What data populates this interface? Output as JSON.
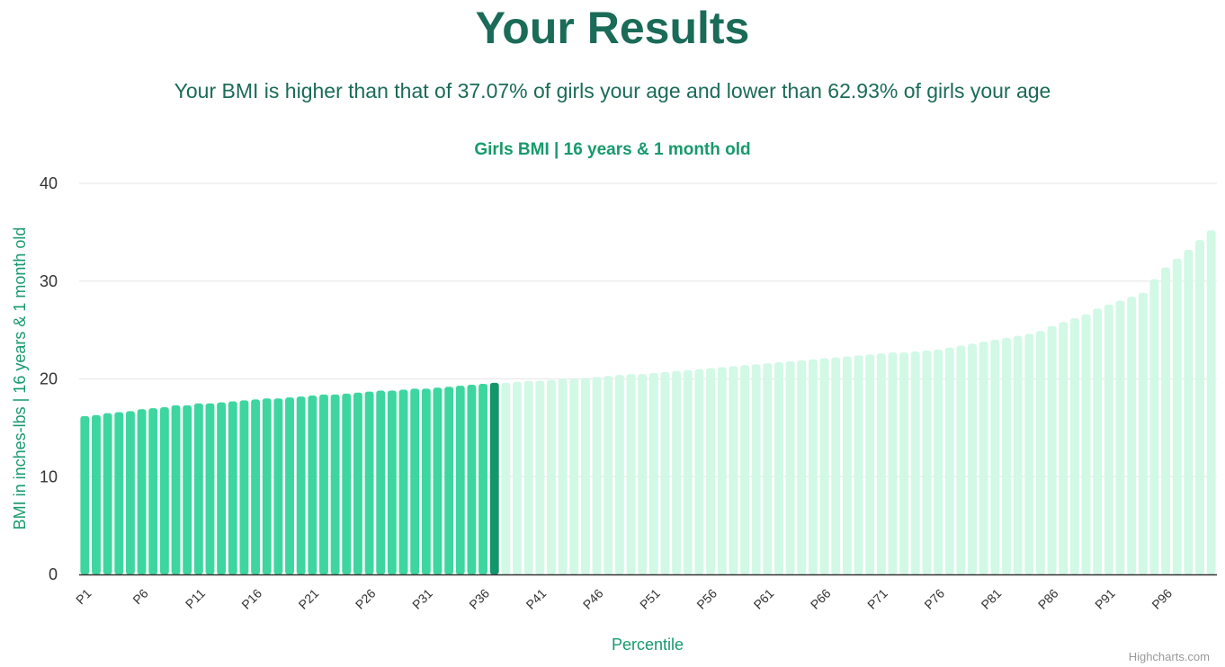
{
  "header": {
    "title": "Your Results",
    "result_text": "Your BMI is higher than that of 37.07% of girls your age and lower than 62.93% of girls your age"
  },
  "credits": "Highcharts.com",
  "colors": {
    "below": "#3dd6a0",
    "current": "#12966a",
    "above": "#d2f8e6",
    "grid": "#e6e6e6",
    "axis": "#333333"
  },
  "chart_data": {
    "type": "bar",
    "title": "Girls BMI | 16 years & 1 month old",
    "xlabel": "Percentile",
    "ylabel": "BMI in inches-lbs | 16 years & 1 month old",
    "ylim": [
      0,
      40
    ],
    "yticks": [
      0,
      10,
      20,
      30,
      40
    ],
    "grid": true,
    "highlight_index": 36,
    "categories": [
      "P1",
      "P2",
      "P3",
      "P4",
      "P5",
      "P6",
      "P7",
      "P8",
      "P9",
      "P10",
      "P11",
      "P12",
      "P13",
      "P14",
      "P15",
      "P16",
      "P17",
      "P18",
      "P19",
      "P20",
      "P21",
      "P22",
      "P23",
      "P24",
      "P25",
      "P26",
      "P27",
      "P28",
      "P29",
      "P30",
      "P31",
      "P32",
      "P33",
      "P34",
      "P35",
      "P36",
      "P37",
      "P38",
      "P39",
      "P40",
      "P41",
      "P42",
      "P43",
      "P44",
      "P45",
      "P46",
      "P47",
      "P48",
      "P49",
      "P50",
      "P51",
      "P52",
      "P53",
      "P54",
      "P55",
      "P56",
      "P57",
      "P58",
      "P59",
      "P60",
      "P61",
      "P62",
      "P63",
      "P64",
      "P65",
      "P66",
      "P67",
      "P68",
      "P69",
      "P70",
      "P71",
      "P72",
      "P73",
      "P74",
      "P75",
      "P76",
      "P77",
      "P78",
      "P79",
      "P80",
      "P81",
      "P82",
      "P83",
      "P84",
      "P85",
      "P86",
      "P87",
      "P88",
      "P89",
      "P90",
      "P91",
      "P92",
      "P93",
      "P94",
      "P95",
      "P96",
      "P97",
      "P98",
      "P99",
      "P100"
    ],
    "x_tick_labels": [
      "P1",
      "P6",
      "P11",
      "P16",
      "P21",
      "P26",
      "P31",
      "P36",
      "P41",
      "P46",
      "P51",
      "P56",
      "P61",
      "P66",
      "P71",
      "P76",
      "P81",
      "P86",
      "P91",
      "P96"
    ],
    "values": [
      16.2,
      16.3,
      16.5,
      16.6,
      16.7,
      16.9,
      17.0,
      17.1,
      17.3,
      17.3,
      17.5,
      17.5,
      17.6,
      17.7,
      17.8,
      17.9,
      18.0,
      18.0,
      18.1,
      18.2,
      18.3,
      18.4,
      18.4,
      18.5,
      18.6,
      18.7,
      18.8,
      18.8,
      18.9,
      19.0,
      19.0,
      19.1,
      19.2,
      19.3,
      19.4,
      19.5,
      19.6,
      19.6,
      19.7,
      19.8,
      19.8,
      19.9,
      20.0,
      20.0,
      20.1,
      20.2,
      20.3,
      20.4,
      20.5,
      20.5,
      20.6,
      20.7,
      20.8,
      20.9,
      21.0,
      21.1,
      21.2,
      21.3,
      21.4,
      21.5,
      21.6,
      21.7,
      21.8,
      21.9,
      22.0,
      22.1,
      22.2,
      22.3,
      22.4,
      22.5,
      22.6,
      22.7,
      22.7,
      22.8,
      22.9,
      23.0,
      23.2,
      23.4,
      23.6,
      23.8,
      24.0,
      24.2,
      24.4,
      24.6,
      24.9,
      25.4,
      25.8,
      26.2,
      26.6,
      27.2,
      27.6,
      28.0,
      28.4,
      28.8,
      30.2,
      31.4,
      32.3,
      33.2,
      34.2,
      35.2
    ]
  }
}
